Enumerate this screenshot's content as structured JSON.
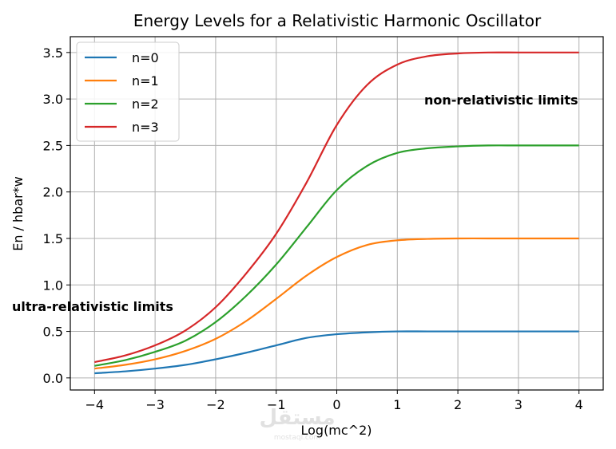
{
  "chart_data": {
    "type": "line",
    "title": "Energy Levels for a Relativistic Harmonic Oscillator",
    "xlabel": "Log(mc^2)",
    "ylabel": "En / hbar*w",
    "xlim": [
      -4.4,
      4.4
    ],
    "ylim": [
      -0.13,
      3.67
    ],
    "x_ticks": [
      -4,
      -3,
      -2,
      -1,
      0,
      1,
      2,
      3,
      4
    ],
    "x_tick_labels": [
      "−4",
      "−3",
      "−2",
      "−1",
      "0",
      "1",
      "2",
      "3",
      "4"
    ],
    "y_ticks": [
      0.0,
      0.5,
      1.0,
      1.5,
      2.0,
      2.5,
      3.0,
      3.5
    ],
    "y_tick_labels": [
      "0.0",
      "0.5",
      "1.0",
      "1.5",
      "2.0",
      "2.5",
      "3.0",
      "3.5"
    ],
    "grid": true,
    "legend_position": "top-left",
    "x": [
      -4,
      -3.5,
      -3,
      -2.5,
      -2,
      -1.5,
      -1,
      -0.5,
      0,
      0.5,
      1,
      1.5,
      2,
      2.5,
      3,
      3.5,
      4
    ],
    "series": [
      {
        "name": "n=0",
        "color": "#1f77b4",
        "values": [
          0.05,
          0.07,
          0.1,
          0.14,
          0.2,
          0.27,
          0.35,
          0.43,
          0.47,
          0.49,
          0.5,
          0.5,
          0.5,
          0.5,
          0.5,
          0.5,
          0.5
        ]
      },
      {
        "name": "n=1",
        "color": "#ff7f0e",
        "values": [
          0.1,
          0.14,
          0.2,
          0.29,
          0.42,
          0.61,
          0.85,
          1.1,
          1.3,
          1.43,
          1.48,
          1.495,
          1.5,
          1.5,
          1.5,
          1.5,
          1.5
        ]
      },
      {
        "name": "n=2",
        "color": "#2ca02c",
        "values": [
          0.13,
          0.19,
          0.28,
          0.4,
          0.6,
          0.88,
          1.22,
          1.62,
          2.02,
          2.28,
          2.42,
          2.47,
          2.49,
          2.5,
          2.5,
          2.5,
          2.5
        ]
      },
      {
        "name": "n=3",
        "color": "#d62728",
        "values": [
          0.17,
          0.24,
          0.35,
          0.51,
          0.76,
          1.12,
          1.55,
          2.1,
          2.72,
          3.15,
          3.37,
          3.46,
          3.49,
          3.5,
          3.5,
          3.5,
          3.5
        ]
      }
    ],
    "annotations": [
      {
        "text": "non-relativistic limits"
      },
      {
        "text": "ultra-relativistic limits"
      }
    ]
  },
  "watermark": {
    "text": "مستقل",
    "subtext": "mostaql.com"
  }
}
